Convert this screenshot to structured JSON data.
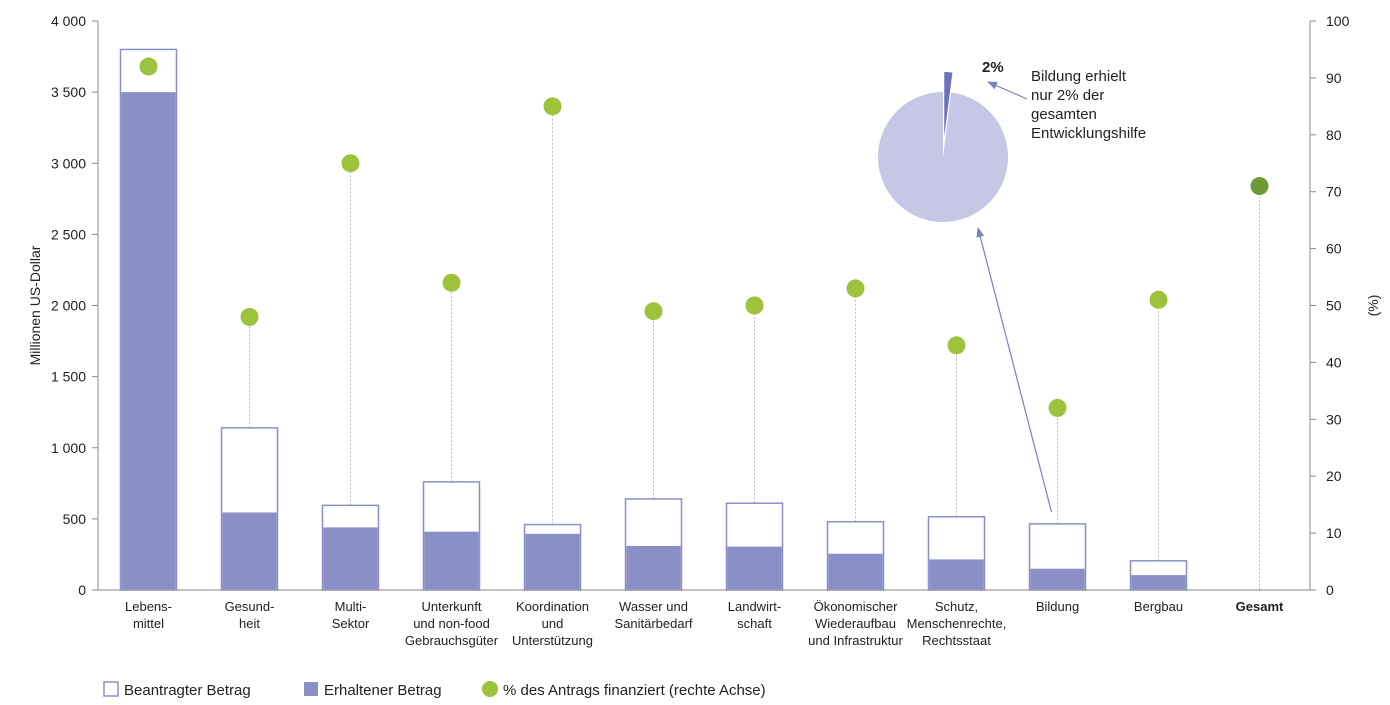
{
  "chart_data": {
    "type": "bar",
    "categories": [
      [
        "Lebens-",
        "mittel"
      ],
      [
        "Gesund-",
        "heit"
      ],
      [
        "Multi-",
        "Sektor"
      ],
      [
        "Unterkunft",
        "und non-food",
        "Gebrauchsgüter"
      ],
      [
        "Koordination",
        "und",
        "Unterstützung"
      ],
      [
        "Wasser und",
        "Sanitärbedarf"
      ],
      [
        "Landwirt-",
        "schaft"
      ],
      [
        "Ökonomischer",
        "Wiederaufbau",
        "und Infrastruktur"
      ],
      [
        "Schutz,",
        "Menschenrechte,",
        "Rechtsstaat"
      ],
      [
        "Bildung"
      ],
      [
        "Bergbau"
      ],
      [
        "Gesamt"
      ]
    ],
    "bold_categories": [
      11
    ],
    "series": [
      {
        "name": "Beantragter Betrag",
        "axis": "left",
        "values": [
          3800,
          1140,
          595,
          760,
          460,
          640,
          610,
          480,
          515,
          465,
          205,
          null
        ]
      },
      {
        "name": "Erhaltener Betrag",
        "axis": "left",
        "values": [
          3500,
          545,
          440,
          410,
          395,
          310,
          305,
          255,
          215,
          150,
          105,
          null
        ]
      },
      {
        "name": "% des Antrags finanziert (rechte Achse)",
        "axis": "right",
        "values": [
          92,
          48,
          75,
          54,
          85,
          49,
          50,
          53,
          43,
          32,
          51,
          71
        ]
      }
    ],
    "ylabel": "Millionen US-Dollar",
    "ylabel_right": "(%)",
    "ylim": [
      0,
      4000
    ],
    "ylim_right": [
      0,
      100
    ],
    "yticks": [
      "0",
      "500",
      "1 000",
      "1 500",
      "2 000",
      "2 500",
      "3 000",
      "3 500",
      "4 000"
    ],
    "yticks_right": [
      "0",
      "10",
      "20",
      "30",
      "40",
      "50",
      "60",
      "70",
      "80",
      "90",
      "100"
    ],
    "legend_placement": "bottom-left",
    "colors": {
      "received": "#8b8fc8",
      "requested_border": "#8b8fc8",
      "dot": "#9dc23b",
      "dot_total": "#6f9a33",
      "dotted_line": "#bbbbbb",
      "pie_main": "#c5c7e4",
      "pie_slice": "#6d73b8",
      "axis": "#888888"
    },
    "pie": {
      "slices": [
        {
          "label": "2%",
          "value": 2
        },
        {
          "label": "",
          "value": 98
        }
      ],
      "annotation": [
        "Bildung erhielt",
        "nur 2% der",
        "gesamten",
        "Entwicklungshilfe"
      ]
    }
  },
  "legend": {
    "requested": "Beantragter Betrag",
    "received": "Erhaltener Betrag",
    "percent": "% des Antrags finanziert (rechte Achse)"
  }
}
